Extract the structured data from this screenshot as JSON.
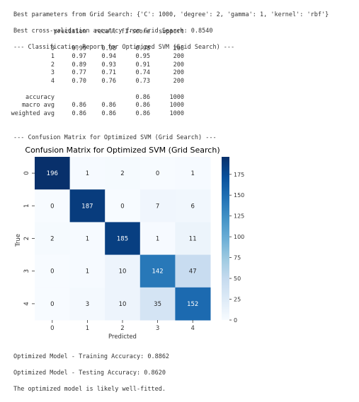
{
  "output": {
    "best_params": "Best parameters from Grid Search: {'C': 1000, 'degree': 2, 'gamma': 1, 'kernel': 'rbf'}",
    "best_cv": "Best cross-validation accuracy from Grid Search: 0.8540",
    "report_header": "--- Classification Report for Optimized SVM (Grid Search) ---",
    "report_columns": [
      "precision",
      "recall",
      "f1-score",
      "support"
    ],
    "report_rows": [
      {
        "label": "0",
        "precision": "0.99",
        "recall": "0.98",
        "f1": "0.98",
        "support": "200"
      },
      {
        "label": "1",
        "precision": "0.97",
        "recall": "0.94",
        "f1": "0.95",
        "support": "200"
      },
      {
        "label": "2",
        "precision": "0.89",
        "recall": "0.93",
        "f1": "0.91",
        "support": "200"
      },
      {
        "label": "3",
        "precision": "0.77",
        "recall": "0.71",
        "f1": "0.74",
        "support": "200"
      },
      {
        "label": "4",
        "precision": "0.70",
        "recall": "0.76",
        "f1": "0.73",
        "support": "200"
      }
    ],
    "report_summary": [
      {
        "label": "accuracy",
        "precision": "",
        "recall": "",
        "f1": "0.86",
        "support": "1000"
      },
      {
        "label": "macro avg",
        "precision": "0.86",
        "recall": "0.86",
        "f1": "0.86",
        "support": "1000"
      },
      {
        "label": "weighted avg",
        "precision": "0.86",
        "recall": "0.86",
        "f1": "0.86",
        "support": "1000"
      }
    ],
    "cm_header": "--- Confusion Matrix for Optimized SVM (Grid Search) ---",
    "train_acc": "Optimized Model - Training Accuracy: 0.8862",
    "test_acc": "Optimized Model - Testing Accuracy: 0.8620",
    "fit_note": "The optimized model is likely well-fitted."
  },
  "chart_data": {
    "type": "heatmap",
    "title": "Confusion Matrix for Optimized SVM (Grid Search)",
    "xlabel": "Predicted",
    "ylabel": "True",
    "x_categories": [
      "0",
      "1",
      "2",
      "3",
      "4"
    ],
    "y_categories": [
      "0",
      "1",
      "2",
      "3",
      "4"
    ],
    "matrix": [
      [
        196,
        1,
        2,
        0,
        1
      ],
      [
        0,
        187,
        0,
        7,
        6
      ],
      [
        2,
        1,
        185,
        1,
        11
      ],
      [
        0,
        1,
        10,
        142,
        47
      ],
      [
        0,
        3,
        10,
        35,
        152
      ]
    ],
    "colormap": "Blues",
    "colorbar_ticks": [
      0,
      25,
      50,
      75,
      100,
      125,
      150,
      175
    ],
    "colorbar_range": [
      0,
      196
    ]
  }
}
